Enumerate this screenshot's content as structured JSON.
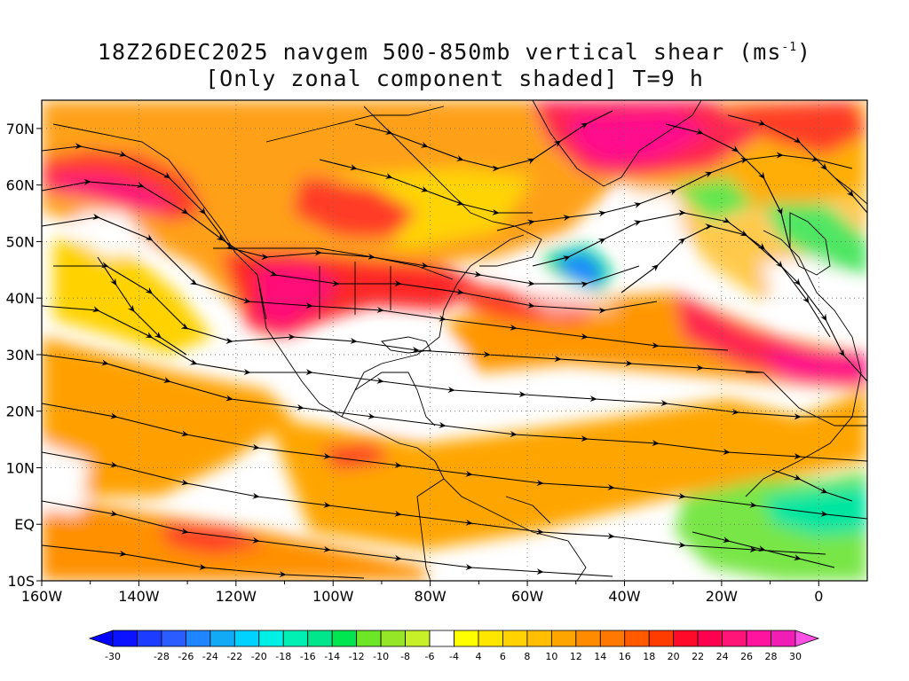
{
  "title": {
    "line1_prefix": "18Z26DEC2025 navgem 500-850mb vertical shear (ms",
    "line1_sup": "-1",
    "line1_suffix": ")",
    "line2": "[Only zonal component shaded] T=9 h"
  },
  "map": {
    "lon_range": [
      -160,
      10
    ],
    "lat_range": [
      -10,
      75
    ],
    "lon_tick_labels": [
      {
        "lon": -160,
        "label": "160W"
      },
      {
        "lon": -140,
        "label": "140W"
      },
      {
        "lon": -120,
        "label": "120W"
      },
      {
        "lon": -100,
        "label": "100W"
      },
      {
        "lon": -80,
        "label": "80W"
      },
      {
        "lon": -60,
        "label": "60W"
      },
      {
        "lon": -40,
        "label": "40W"
      },
      {
        "lon": -20,
        "label": "20W"
      },
      {
        "lon": 0,
        "label": "0"
      }
    ],
    "lat_tick_labels": [
      {
        "lat": 70,
        "label": "70N"
      },
      {
        "lat": 60,
        "label": "60N"
      },
      {
        "lat": 50,
        "label": "50N"
      },
      {
        "lat": 40,
        "label": "40N"
      },
      {
        "lat": 30,
        "label": "30N"
      },
      {
        "lat": 20,
        "label": "20N"
      },
      {
        "lat": 10,
        "label": "10N"
      },
      {
        "lat": 0,
        "label": "EQ"
      },
      {
        "lat": -10,
        "label": "10S"
      }
    ],
    "shading_regions": [
      {
        "lon": -140,
        "lat": 60,
        "value": 26
      },
      {
        "lon": -105,
        "lat": 40,
        "value": 26
      },
      {
        "lon": -85,
        "lat": 45,
        "value": 20
      },
      {
        "lon": -25,
        "lat": 67,
        "value": 26
      },
      {
        "lon": -5,
        "lat": 27,
        "value": 26
      },
      {
        "lon": -47,
        "lat": 41,
        "value": -24
      },
      {
        "lon": -10,
        "lat": 0,
        "value": -14
      },
      {
        "lon": -125,
        "lat": -5,
        "value": 18
      },
      {
        "lon": -100,
        "lat": 10,
        "value": 14
      },
      {
        "lon": -60,
        "lat": 20,
        "value": 12
      }
    ]
  },
  "colorbar": {
    "labels": [
      "-30",
      "-28",
      "-26",
      "-24",
      "-22",
      "-20",
      "-18",
      "-16",
      "-14",
      "-12",
      "-10",
      "-8",
      "-6",
      "-4",
      "4",
      "6",
      "8",
      "10",
      "12",
      "14",
      "16",
      "18",
      "20",
      "22",
      "24",
      "26",
      "28",
      "30"
    ],
    "colors": [
      "#0a12ff",
      "#1c3cff",
      "#2a5cff",
      "#1f86ff",
      "#12aaf4",
      "#00d2ff",
      "#00f0e6",
      "#00f0b4",
      "#00e68c",
      "#00e650",
      "#6ee628",
      "#96e628",
      "#c8f028",
      "#ffffff",
      "#ffff00",
      "#ffe600",
      "#ffd200",
      "#ffbe00",
      "#ffa500",
      "#ff8c00",
      "#ff7800",
      "#ff5a00",
      "#ff3c00",
      "#ff0a28",
      "#ff0050",
      "#ff1478",
      "#ff14a0",
      "#f01eb4"
    ],
    "low_arrow_color": "#0000ff",
    "high_arrow_color": "#ff50e6"
  }
}
